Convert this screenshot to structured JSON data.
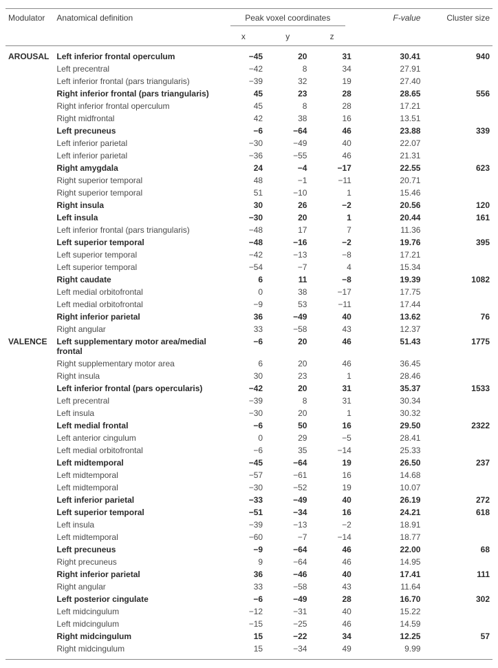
{
  "columns": {
    "modulator": "Modulator",
    "anatomical": "Anatomical definition",
    "peak_voxel": "Peak voxel coordinates",
    "x": "x",
    "y": "y",
    "z": "z",
    "fvalue": "F-value",
    "cluster": "Cluster size"
  },
  "rows": [
    {
      "mod": "AROUSAL",
      "def": "Left inferior frontal operculum",
      "x": -45,
      "y": 20,
      "z": 31,
      "f": "30.41",
      "clust": 940,
      "bold": true
    },
    {
      "mod": "",
      "def": "Left precentral",
      "x": -42,
      "y": 8,
      "z": 34,
      "f": "27.91",
      "clust": "",
      "bold": false
    },
    {
      "mod": "",
      "def": "Left inferior frontal (pars triangularis)",
      "x": -39,
      "y": 32,
      "z": 19,
      "f": "27.40",
      "clust": "",
      "bold": false
    },
    {
      "mod": "",
      "def": "Right inferior frontal (pars triangularis)",
      "x": 45,
      "y": 23,
      "z": 28,
      "f": "28.65",
      "clust": 556,
      "bold": true
    },
    {
      "mod": "",
      "def": "Right inferior frontal operculum",
      "x": 45,
      "y": 8,
      "z": 28,
      "f": "17.21",
      "clust": "",
      "bold": false
    },
    {
      "mod": "",
      "def": "Right midfrontal",
      "x": 42,
      "y": 38,
      "z": 16,
      "f": "13.51",
      "clust": "",
      "bold": false
    },
    {
      "mod": "",
      "def": "Left precuneus",
      "x": -6,
      "y": -64,
      "z": 46,
      "f": "23.88",
      "clust": 339,
      "bold": true
    },
    {
      "mod": "",
      "def": "Left inferior parietal",
      "x": -30,
      "y": -49,
      "z": 40,
      "f": "22.07",
      "clust": "",
      "bold": false
    },
    {
      "mod": "",
      "def": "Left inferior parietal",
      "x": -36,
      "y": -55,
      "z": 46,
      "f": "21.31",
      "clust": "",
      "bold": false
    },
    {
      "mod": "",
      "def": "Right amygdala",
      "x": 24,
      "y": -4,
      "z": -17,
      "f": "22.55",
      "clust": 623,
      "bold": true
    },
    {
      "mod": "",
      "def": "Right superior temporal",
      "x": 48,
      "y": -1,
      "z": -11,
      "f": "20.71",
      "clust": "",
      "bold": false
    },
    {
      "mod": "",
      "def": "Right superior temporal",
      "x": 51,
      "y": -10,
      "z": 1,
      "f": "15.46",
      "clust": "",
      "bold": false
    },
    {
      "mod": "",
      "def": "Right insula",
      "x": 30,
      "y": 26,
      "z": -2,
      "f": "20.56",
      "clust": 120,
      "bold": true
    },
    {
      "mod": "",
      "def": "Left insula",
      "x": -30,
      "y": 20,
      "z": 1,
      "f": "20.44",
      "clust": 161,
      "bold": true
    },
    {
      "mod": "",
      "def": "Left inferior frontal (pars triangularis)",
      "x": -48,
      "y": 17,
      "z": 7,
      "f": "11.36",
      "clust": "",
      "bold": false
    },
    {
      "mod": "",
      "def": "Left superior temporal",
      "x": -48,
      "y": -16,
      "z": -2,
      "f": "19.76",
      "clust": 395,
      "bold": true
    },
    {
      "mod": "",
      "def": "Left superior temporal",
      "x": -42,
      "y": -13,
      "z": -8,
      "f": "17.21",
      "clust": "",
      "bold": false
    },
    {
      "mod": "",
      "def": "Left superior temporal",
      "x": -54,
      "y": -7,
      "z": 4,
      "f": "15.34",
      "clust": "",
      "bold": false
    },
    {
      "mod": "",
      "def": "Right caudate",
      "x": 6,
      "y": 11,
      "z": -8,
      "f": "19.39",
      "clust": 1082,
      "bold": true
    },
    {
      "mod": "",
      "def": "Left medial orbitofrontal",
      "x": 0,
      "y": 38,
      "z": -17,
      "f": "17.75",
      "clust": "",
      "bold": false
    },
    {
      "mod": "",
      "def": "Left medial orbitofrontal",
      "x": -9,
      "y": 53,
      "z": -11,
      "f": "17.44",
      "clust": "",
      "bold": false
    },
    {
      "mod": "",
      "def": "Right inferior parietal",
      "x": 36,
      "y": -49,
      "z": 40,
      "f": "13.62",
      "clust": 76,
      "bold": true
    },
    {
      "mod": "",
      "def": "Right angular",
      "x": 33,
      "y": -58,
      "z": 43,
      "f": "12.37",
      "clust": "",
      "bold": false
    },
    {
      "mod": "VALENCE",
      "def": "Left supplementary motor area/medial frontal",
      "x": -6,
      "y": 20,
      "z": 46,
      "f": "51.43",
      "clust": 1775,
      "bold": true
    },
    {
      "mod": "",
      "def": "Right supplementary motor area",
      "x": 6,
      "y": 20,
      "z": 46,
      "f": "36.45",
      "clust": "",
      "bold": false
    },
    {
      "mod": "",
      "def": "Right insula",
      "x": 30,
      "y": 23,
      "z": 1,
      "f": "28.46",
      "clust": "",
      "bold": false
    },
    {
      "mod": "",
      "def": "Left inferior frontal (pars opercularis)",
      "x": -42,
      "y": 20,
      "z": 31,
      "f": "35.37",
      "clust": 1533,
      "bold": true
    },
    {
      "mod": "",
      "def": "Left precentral",
      "x": -39,
      "y": 8,
      "z": 31,
      "f": "30.34",
      "clust": "",
      "bold": false
    },
    {
      "mod": "",
      "def": "Left insula",
      "x": -30,
      "y": 20,
      "z": 1,
      "f": "30.32",
      "clust": "",
      "bold": false
    },
    {
      "mod": "",
      "def": "Left medial frontal",
      "x": -6,
      "y": 50,
      "z": 16,
      "f": "29.50",
      "clust": 2322,
      "bold": true
    },
    {
      "mod": "",
      "def": "Left anterior cingulum",
      "x": 0,
      "y": 29,
      "z": -5,
      "f": "28.41",
      "clust": "",
      "bold": false
    },
    {
      "mod": "",
      "def": "Left medial orbitofrontal",
      "x": -6,
      "y": 35,
      "z": -14,
      "f": "25.33",
      "clust": "",
      "bold": false
    },
    {
      "mod": "",
      "def": "Left midtemporal",
      "x": -45,
      "y": -64,
      "z": 19,
      "f": "26.50",
      "clust": 237,
      "bold": true
    },
    {
      "mod": "",
      "def": "Left midtemporal",
      "x": -57,
      "y": -61,
      "z": 16,
      "f": "14.68",
      "clust": "",
      "bold": false
    },
    {
      "mod": "",
      "def": "Left midtemporal",
      "x": -30,
      "y": -52,
      "z": 19,
      "f": "10.07",
      "clust": "",
      "bold": false
    },
    {
      "mod": "",
      "def": "Left inferior parietal",
      "x": -33,
      "y": -49,
      "z": 40,
      "f": "26.19",
      "clust": 272,
      "bold": true
    },
    {
      "mod": "",
      "def": "Left superior temporal",
      "x": -51,
      "y": -34,
      "z": 16,
      "f": "24.21",
      "clust": 618,
      "bold": true
    },
    {
      "mod": "",
      "def": "Left insula",
      "x": -39,
      "y": -13,
      "z": -2,
      "f": "18.91",
      "clust": "",
      "bold": false
    },
    {
      "mod": "",
      "def": "Left midtemporal",
      "x": -60,
      "y": -7,
      "z": -14,
      "f": "18.77",
      "clust": "",
      "bold": false
    },
    {
      "mod": "",
      "def": "Left precuneus",
      "x": -9,
      "y": -64,
      "z": 46,
      "f": "22.00",
      "clust": 68,
      "bold": true
    },
    {
      "mod": "",
      "def": "Right precuneus",
      "x": 9,
      "y": -64,
      "z": 46,
      "f": "14.95",
      "clust": "",
      "bold": false
    },
    {
      "mod": "",
      "def": "Right inferior parietal",
      "x": 36,
      "y": -46,
      "z": 40,
      "f": "17.41",
      "clust": 111,
      "bold": true
    },
    {
      "mod": "",
      "def": "Right angular",
      "x": 33,
      "y": -58,
      "z": 43,
      "f": "11.64",
      "clust": "",
      "bold": false
    },
    {
      "mod": "",
      "def": "Left posterior cingulate",
      "x": -6,
      "y": -49,
      "z": 28,
      "f": "16.70",
      "clust": 302,
      "bold": true
    },
    {
      "mod": "",
      "def": "Left midcingulum",
      "x": -12,
      "y": -31,
      "z": 40,
      "f": "15.22",
      "clust": "",
      "bold": false
    },
    {
      "mod": "",
      "def": "Left midcingulum",
      "x": -15,
      "y": -25,
      "z": 46,
      "f": "14.59",
      "clust": "",
      "bold": false
    },
    {
      "mod": "",
      "def": "Right midcingulum",
      "x": 15,
      "y": -22,
      "z": 34,
      "f": "12.25",
      "clust": 57,
      "bold": true
    },
    {
      "mod": "",
      "def": "Right midcingulum",
      "x": 15,
      "y": -34,
      "z": 49,
      "f": "9.99",
      "clust": "",
      "bold": false
    }
  ]
}
